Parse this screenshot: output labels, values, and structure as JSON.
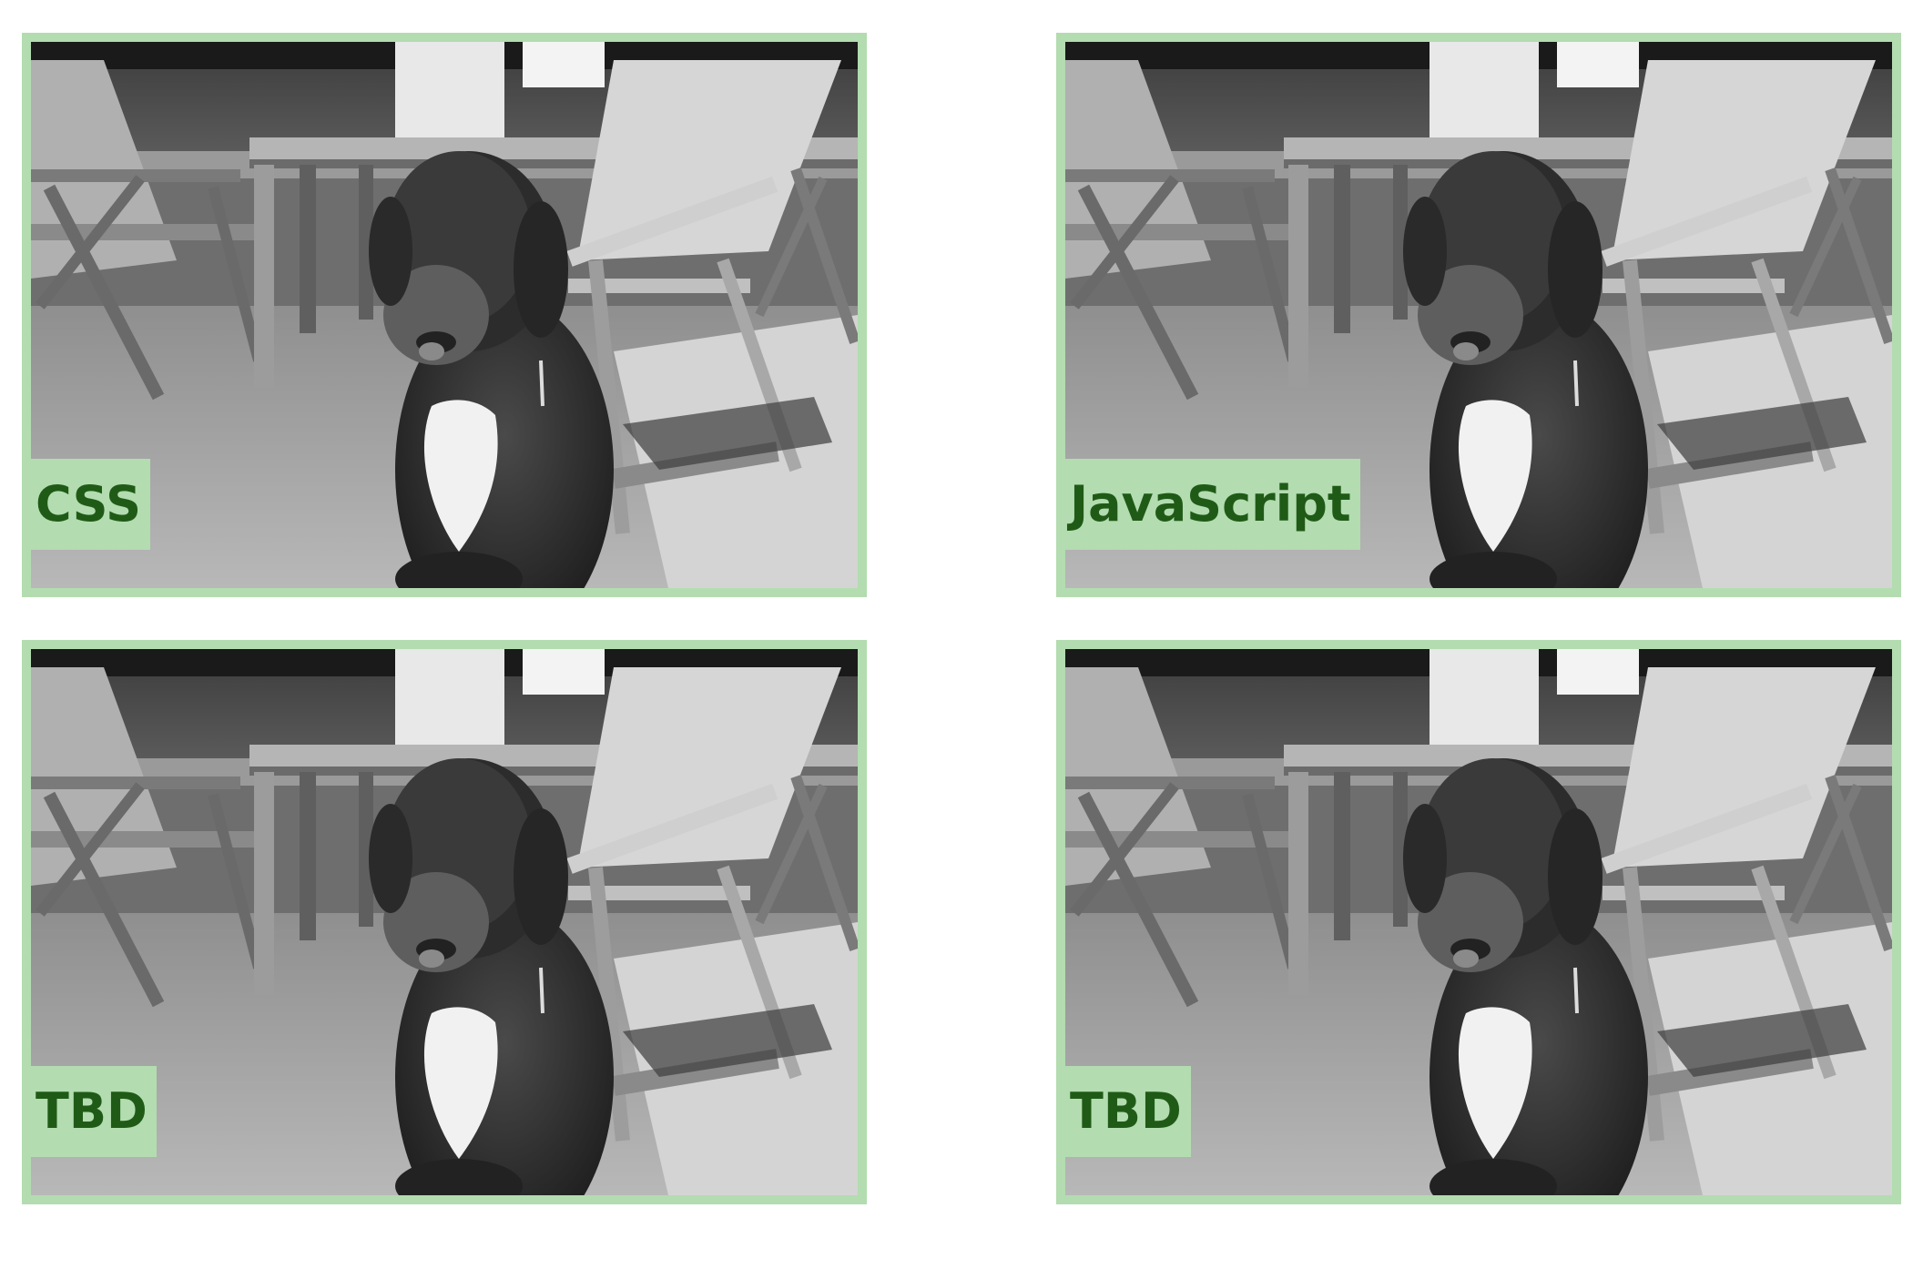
{
  "colors": {
    "frame": "#b3dcb0",
    "label_text": "#1f5b16",
    "background": "#ffffff"
  },
  "cards": [
    {
      "label": "CSS",
      "image_icon": "dog-photo-icon"
    },
    {
      "label": "JavaScript",
      "image_icon": "dog-photo-icon"
    },
    {
      "label": "TBD",
      "image_icon": "dog-photo-icon"
    },
    {
      "label": "TBD",
      "image_icon": "dog-photo-icon"
    }
  ]
}
